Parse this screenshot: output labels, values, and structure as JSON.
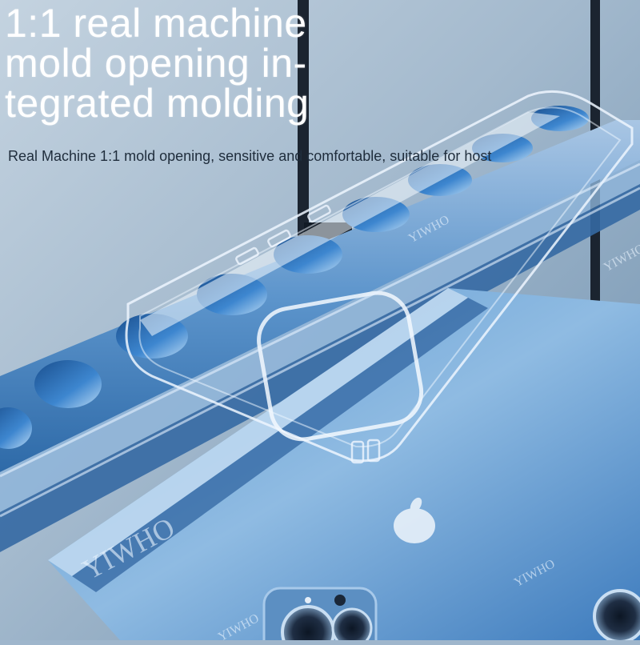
{
  "headline": {
    "line1": "1:1 real machine",
    "line2": "mold opening in-",
    "line3": "tegrated molding"
  },
  "subtitle": "Real Machine 1:1 mold opening, sensitive and comfortable, suitable for host",
  "watermark": "YIWHO",
  "colors": {
    "background": "#9fb6cc",
    "metal_blue": "#3f7fc0",
    "deep_blue": "#1e4f86",
    "frame_dark": "#1b2430",
    "headline_text": "#ffffff",
    "subtitle_text": "#1f2d3c"
  }
}
